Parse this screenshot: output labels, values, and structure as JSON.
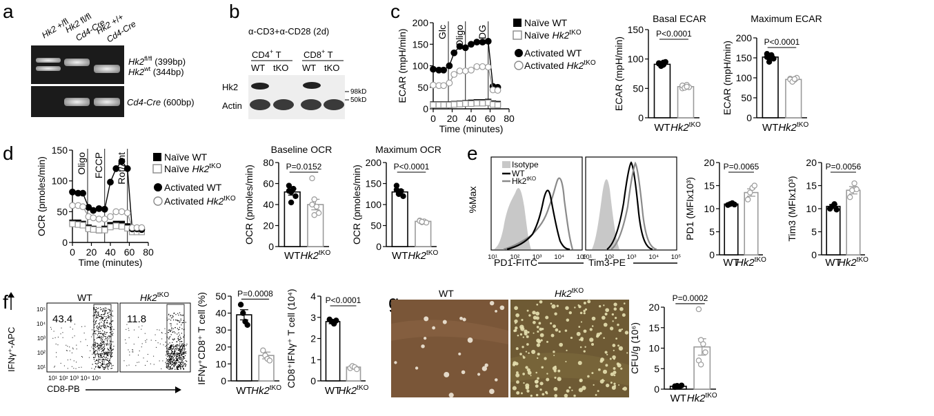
{
  "panel_letters": [
    "a",
    "b",
    "c",
    "d",
    "e",
    "f",
    "g"
  ],
  "a": {
    "lanes": [
      "Hk2 +/fl",
      "Hk2 fl/fl Cd4-Cre",
      "Hk2 +/+ Cd4-Cre"
    ],
    "lane_parts": [
      [
        "Hk2",
        " +/fl"
      ],
      [
        "Hk2",
        " fl/fl",
        "Cd4-Cre"
      ],
      [
        "Hk2",
        " +/+",
        "Cd4-Cre"
      ]
    ],
    "band_fl": "Hk2",
    "band_fl_sup": "fl/fl",
    "band_fl_size": "(399bp)",
    "band_wt": "Hk2",
    "band_wt_sup": "wt",
    "band_wt_size": "(344bp)",
    "band_cre": "Cd4-Cre",
    "band_cre_size": "(600bp)"
  },
  "b": {
    "condition": "α-CD3+α-CD28 (2d)",
    "group1": "CD4",
    "group1_sup": "+",
    "group1_suffix": " T",
    "group2": "CD8",
    "group2_sup": "+",
    "group2_suffix": " T",
    "lane_labels": [
      "WT",
      "tKO",
      "WT",
      "tKO"
    ],
    "row1": "Hk2",
    "row2": "Actin",
    "mw1": "98kD",
    "mw2": "50kD"
  },
  "chart_data": [
    {
      "id": "c_ecar_time",
      "type": "line",
      "ylabel": "ECAR (mpH/min)",
      "xlabel": "Time (minutes)",
      "xlim": [
        0,
        80
      ],
      "ylim": [
        0,
        200
      ],
      "xticks": [
        0,
        20,
        40,
        60,
        80
      ],
      "yticks": [
        0,
        50,
        100,
        150,
        200
      ],
      "injections": [
        {
          "label": "Glc",
          "x": 16
        },
        {
          "label": "Oligo",
          "x": 34
        },
        {
          "label": "2DG",
          "x": 58
        }
      ],
      "x": [
        0,
        6,
        11,
        17,
        22,
        28,
        34,
        40,
        46,
        52,
        58,
        63,
        68
      ],
      "series": [
        {
          "name": "Naïve WT",
          "values": [
            10,
            10,
            10,
            10,
            11,
            12,
            13,
            14,
            15,
            15,
            16,
            12,
            11
          ]
        },
        {
          "name": "Naïve Hk2tKO",
          "values": [
            9,
            9,
            9,
            9,
            10,
            11,
            12,
            12,
            13,
            13,
            14,
            10,
            9
          ]
        },
        {
          "name": "Activated WT",
          "values": [
            92,
            90,
            90,
            100,
            130,
            145,
            142,
            150,
            155,
            155,
            157,
            52,
            50
          ]
        },
        {
          "name": "Activated Hk2tKO",
          "values": [
            55,
            54,
            54,
            60,
            80,
            88,
            88,
            90,
            98,
            98,
            97,
            44,
            43
          ]
        }
      ]
    },
    {
      "id": "c_basal_ecar",
      "type": "bar",
      "title": "Basal ECAR",
      "ylabel": "ECAR (mpH/min)",
      "categories": [
        "WT",
        "Hk2tKO"
      ],
      "values": [
        91,
        53
      ],
      "sem": [
        2,
        2
      ],
      "ylim": [
        0,
        150
      ],
      "yticks": [
        0,
        50,
        100,
        150
      ],
      "points": [
        [
          92,
          88,
          90,
          95,
          93,
          89,
          94
        ],
        [
          50,
          54,
          56,
          52,
          55,
          51,
          53
        ]
      ],
      "pvalue": "P<0.0001"
    },
    {
      "id": "c_max_ecar",
      "type": "bar",
      "title": "Maximum ECAR",
      "ylabel": "ECAR (mpH/min)",
      "categories": [
        "WT",
        "Hk2tKO"
      ],
      "values": [
        152,
        96
      ],
      "sem": [
        3,
        3
      ],
      "ylim": [
        0,
        200
      ],
      "yticks": [
        0,
        50,
        100,
        150,
        200
      ],
      "points": [
        [
          160,
          150,
          155,
          148,
          152,
          140,
          157
        ],
        [
          98,
          92,
          95,
          100,
          96,
          90,
          97
        ]
      ],
      "pvalue": "P<0.0001"
    },
    {
      "id": "d_ocr_time",
      "type": "line",
      "ylabel": "OCR (pmoles/min)",
      "xlabel": "Time (minutes)",
      "xlim": [
        0,
        80
      ],
      "ylim": [
        0,
        150
      ],
      "xticks": [
        0,
        20,
        40,
        60,
        80
      ],
      "yticks": [
        0,
        50,
        100,
        150
      ],
      "injections": [
        {
          "label": "Oligo",
          "x": 16
        },
        {
          "label": "FCCP",
          "x": 34
        },
        {
          "label": "Rot/Ant",
          "x": 58
        }
      ],
      "x": [
        0,
        6,
        11,
        17,
        22,
        28,
        34,
        40,
        46,
        52,
        58,
        63,
        68,
        73
      ],
      "series": [
        {
          "name": "Naïve WT",
          "values": [
            32,
            32,
            30,
            24,
            22,
            20,
            22,
            28,
            30,
            30,
            26,
            18,
            18,
            18
          ]
        },
        {
          "name": "Naïve Hk2tKO",
          "values": [
            30,
            29,
            28,
            22,
            21,
            20,
            20,
            25,
            27,
            26,
            23,
            17,
            17,
            17
          ]
        },
        {
          "name": "Activated WT",
          "values": [
            82,
            80,
            80,
            57,
            52,
            55,
            54,
            98,
            120,
            132,
            120,
            22,
            22,
            21
          ]
        },
        {
          "name": "Activated Hk2tKO",
          "values": [
            60,
            60,
            58,
            42,
            40,
            38,
            38,
            42,
            50,
            50,
            48,
            24,
            24,
            24
          ]
        }
      ]
    },
    {
      "id": "d_baseline_ocr",
      "type": "bar",
      "title": "Baseline OCR",
      "ylabel": "OCR (pmoles/min)",
      "categories": [
        "WT",
        "Hk2tKO"
      ],
      "values": [
        52,
        40
      ],
      "sem": [
        3,
        5
      ],
      "ylim": [
        0,
        80
      ],
      "yticks": [
        0,
        20,
        40,
        60,
        80
      ],
      "points": [
        [
          58,
          52,
          55,
          48,
          53,
          42
        ],
        [
          65,
          45,
          38,
          32,
          40,
          30
        ]
      ],
      "pvalue": "P=0.0152"
    },
    {
      "id": "d_max_ocr",
      "type": "bar",
      "title": "Maximum OCR",
      "ylabel": "OCR (pmoles/min)",
      "categories": [
        "WT",
        "Hk2tKO"
      ],
      "values": [
        130,
        60
      ],
      "sem": [
        5,
        2
      ],
      "ylim": [
        0,
        200
      ],
      "yticks": [
        0,
        50,
        100,
        150,
        200
      ],
      "points": [
        [
          145,
          128,
          132,
          120,
          135,
          125
        ],
        [
          62,
          58,
          60,
          57,
          61,
          59
        ]
      ],
      "pvalue": "P<0.0001"
    },
    {
      "id": "e_pd1",
      "type": "bar",
      "ylabel": "PD1 (MFIx10³)",
      "categories": [
        "WT",
        "Hk2tKO"
      ],
      "values": [
        11,
        13.5
      ],
      "sem": [
        0.3,
        0.8
      ],
      "ylim": [
        0,
        20
      ],
      "yticks": [
        0,
        5,
        10,
        15,
        20
      ],
      "points": [
        [
          10.8,
          11,
          11.2,
          10.9
        ],
        [
          12,
          13.5,
          14.5,
          15
        ]
      ],
      "pvalue": "P=0.0065"
    },
    {
      "id": "e_tim3",
      "type": "bar",
      "ylabel": "Tim3 (MFIx10³)",
      "categories": [
        "WT",
        "Hk2tKO"
      ],
      "values": [
        10.5,
        14
      ],
      "sem": [
        0.4,
        0.8
      ],
      "ylim": [
        0,
        20
      ],
      "yticks": [
        0,
        5,
        10,
        15,
        20
      ],
      "points": [
        [
          10,
          10.5,
          11,
          9.8
        ],
        [
          12.5,
          14,
          15.5,
          14.2
        ]
      ],
      "pvalue": "P=0.0056"
    },
    {
      "id": "f_pct",
      "type": "bar",
      "ylabel": "IFNγ⁺CD8⁺ T cell (%)",
      "categories": [
        "WT",
        "Hk2tKO"
      ],
      "values": [
        39,
        15
      ],
      "sem": [
        3,
        2
      ],
      "ylim": [
        0,
        50
      ],
      "yticks": [
        0,
        10,
        20,
        30,
        40,
        50
      ],
      "points": [
        [
          45,
          40,
          35,
          33
        ],
        [
          18,
          15,
          13,
          12
        ]
      ],
      "pvalue": "P=0.0008"
    },
    {
      "id": "f_count",
      "type": "bar",
      "ylabel": "CD8⁺IFNγ⁺ T cell (10⁴)",
      "categories": [
        "WT",
        "Hk2tKO"
      ],
      "values": [
        2.8,
        0.65
      ],
      "sem": [
        0.1,
        0.05
      ],
      "ylim": [
        0,
        4
      ],
      "yticks": [
        0,
        1,
        2,
        3,
        4
      ],
      "points": [
        [
          2.9,
          2.8,
          2.7,
          2.85
        ],
        [
          0.6,
          0.7,
          0.65,
          0.55
        ]
      ],
      "pvalue": "P<0.0001"
    },
    {
      "id": "g_cfu",
      "type": "bar",
      "ylabel": "CFU/g (10⁶)",
      "categories": [
        "WT",
        "Hk2tKO"
      ],
      "values": [
        0.7,
        10.3
      ],
      "sem": [
        0.2,
        2
      ],
      "ylim": [
        0,
        20
      ],
      "yticks": [
        0,
        5,
        10,
        15,
        20
      ],
      "points": [
        [
          0.5,
          0.8,
          0.6,
          0.9,
          0.7
        ],
        [
          19.5,
          12,
          11,
          9,
          7,
          6
        ]
      ],
      "pvalue": "P=0.0002"
    }
  ],
  "legend_c": {
    "items": [
      "Naïve WT",
      "Naïve Hk2tKO",
      "Activated WT",
      "Activated Hk2tKO"
    ]
  },
  "legend_d": {
    "items": [
      "Naïve WT",
      "Naïve Hk2tKO",
      "Activated WT",
      "Activated Hk2tKO"
    ]
  },
  "gene_label": {
    "main": "Hk2",
    "sup": "tKO",
    "wt": "WT"
  },
  "e": {
    "ylabel": "%Max",
    "xlabel_pd1": "PD1-FITC",
    "xlabel_tim3": "Tim3-PE",
    "legend": [
      "Isotype",
      "WT",
      "Hk2tKO"
    ],
    "xticks": [
      "10¹",
      "10²",
      "10³",
      "10⁴",
      "10⁵"
    ]
  },
  "f": {
    "ylabel": "IFNγ⁺-APC",
    "xlabel": "CD8-PB",
    "plot_titles": [
      "WT",
      "Hk2tKO"
    ],
    "gate_values": [
      "43.4",
      "11.8"
    ],
    "yticks": [
      "10⁵",
      "10⁴",
      "10³",
      "10²",
      "10¹"
    ],
    "xticks": "10¹ 10² 10³ 10⁴ 10⁵"
  },
  "g": {
    "titles": [
      "WT",
      "Hk2tKO"
    ]
  },
  "colors": {
    "gel_bg": "#1a1a1a",
    "band": "#dcdcdc",
    "gray": "#9a9a9a",
    "isotype": "#c8c8c8",
    "tissue_wt": "#7a5638",
    "tissue_ko": "#6e5a34"
  }
}
